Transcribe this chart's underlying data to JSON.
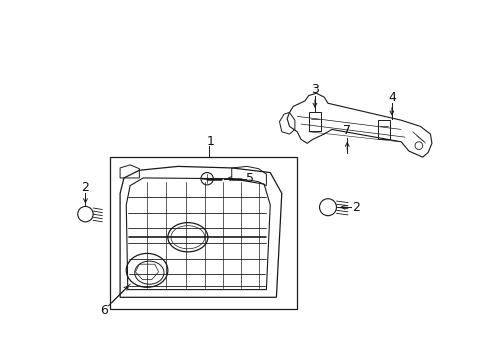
{
  "bg_color": "#ffffff",
  "line_color": "#1a1a1a",
  "fig_width": 4.89,
  "fig_height": 3.6,
  "dpi": 100,
  "label_fontsize": 9,
  "label_color": "#111111"
}
